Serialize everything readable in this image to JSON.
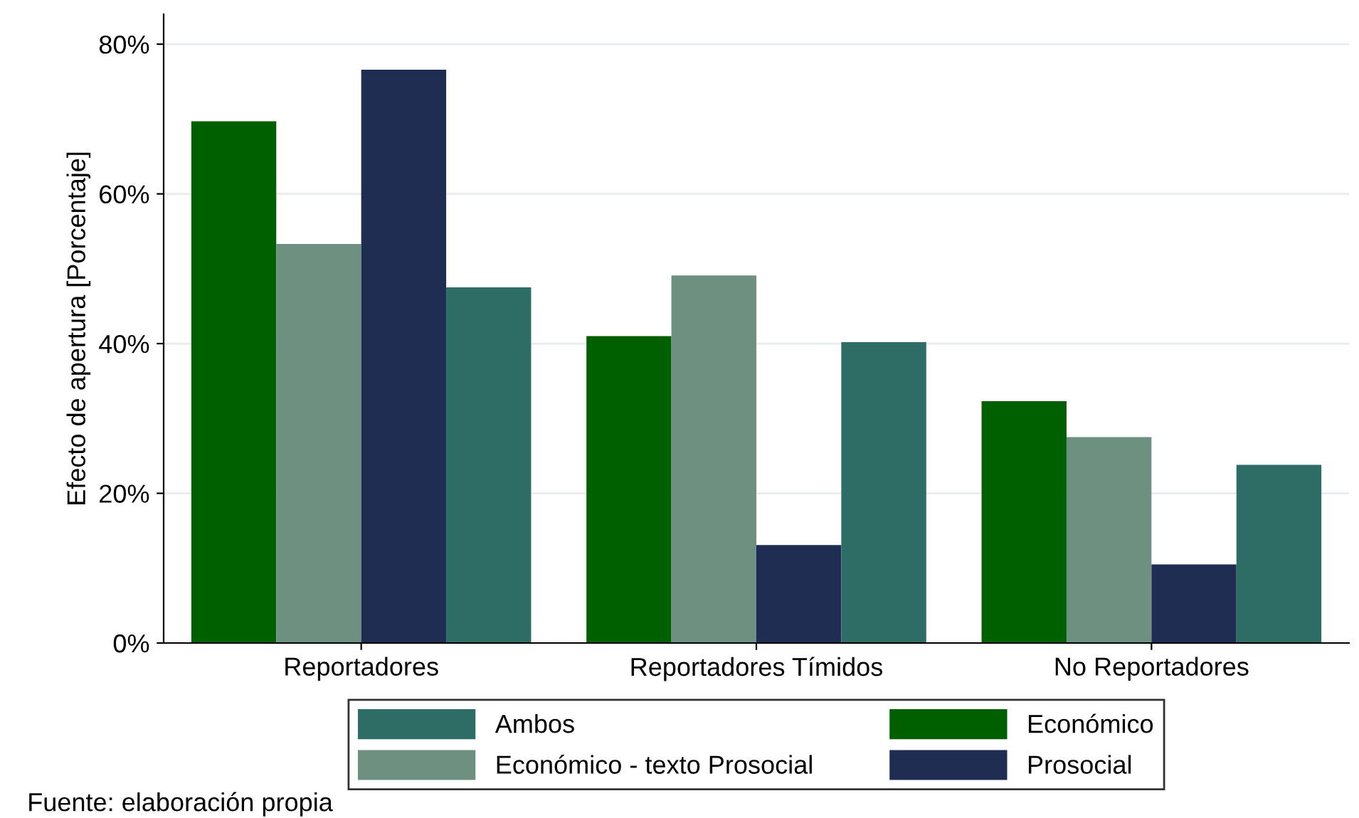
{
  "chart_data": {
    "type": "bar",
    "ylabel": "Efecto de apertura [Porcentaje]",
    "categories": [
      "Reportadores",
      "Reportadores Tímidos",
      "No Reportadores"
    ],
    "series": [
      {
        "name": "Económico",
        "color": "#006000",
        "values": [
          69.7,
          41.0,
          32.3
        ]
      },
      {
        "name": "Económico - texto Prosocial",
        "color": "#6e9080",
        "values": [
          53.3,
          49.1,
          27.5
        ]
      },
      {
        "name": "Prosocial",
        "color": "#1f2d52",
        "values": [
          76.6,
          13.1,
          10.5
        ]
      },
      {
        "name": "Ambos",
        "color": "#2e6d66",
        "values": [
          47.5,
          40.2,
          23.8
        ]
      }
    ],
    "ylim": [
      0,
      84
    ],
    "yticks": [
      {
        "value": 0,
        "label": "0%"
      },
      {
        "value": 20,
        "label": "20%"
      },
      {
        "value": 40,
        "label": "40%"
      },
      {
        "value": 60,
        "label": "60%"
      },
      {
        "value": 80,
        "label": "80%"
      }
    ],
    "grid": "y",
    "legend": "bottom",
    "annotations": [
      "Fuente: elaboración propia"
    ]
  }
}
